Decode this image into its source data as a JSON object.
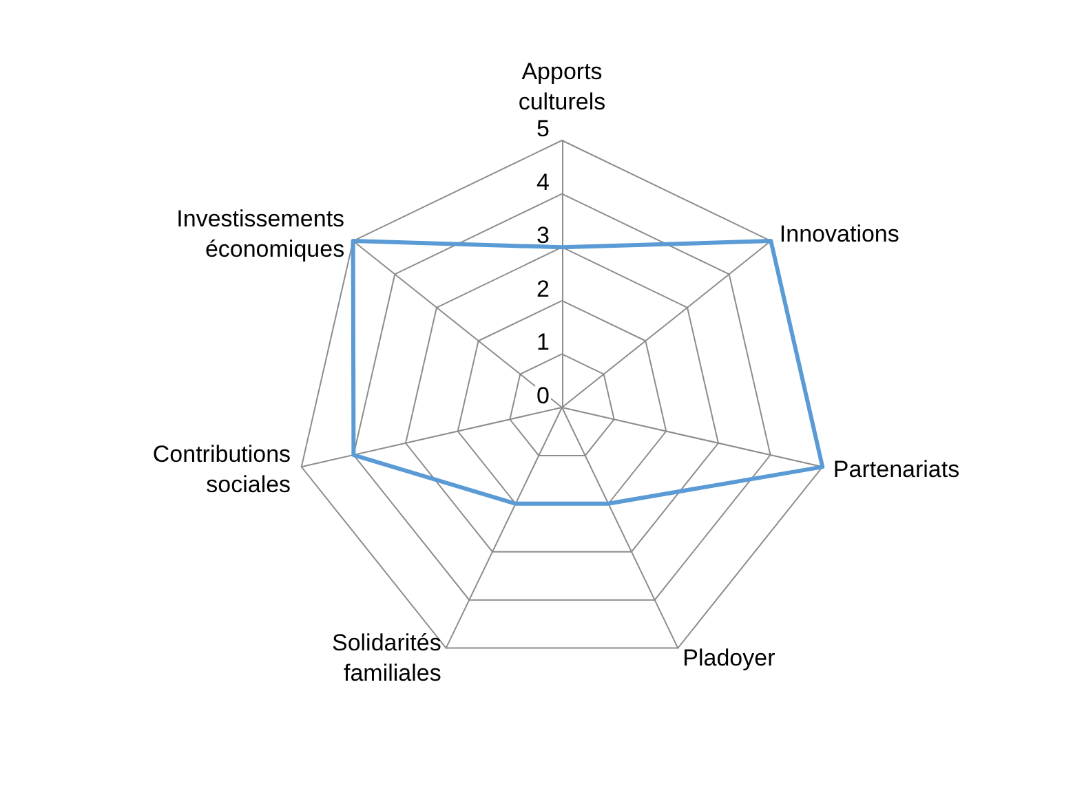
{
  "chart_data": {
    "type": "radar",
    "categories": [
      "Apports\nculturels",
      "Innovations",
      "Partenariats",
      "Pladoyer",
      "Solidarités\nfamiliales",
      "Contributions\nsociales",
      "Investissements\néconomiques"
    ],
    "series": [
      {
        "color": "#5b9bd5",
        "values": [
          3,
          5,
          5,
          2,
          2,
          4,
          5
        ]
      }
    ],
    "ylim": [
      0,
      5
    ],
    "yticks": [
      0,
      1,
      2,
      3,
      4,
      5
    ],
    "grid": true,
    "marker": "none",
    "line_style": "solid"
  }
}
